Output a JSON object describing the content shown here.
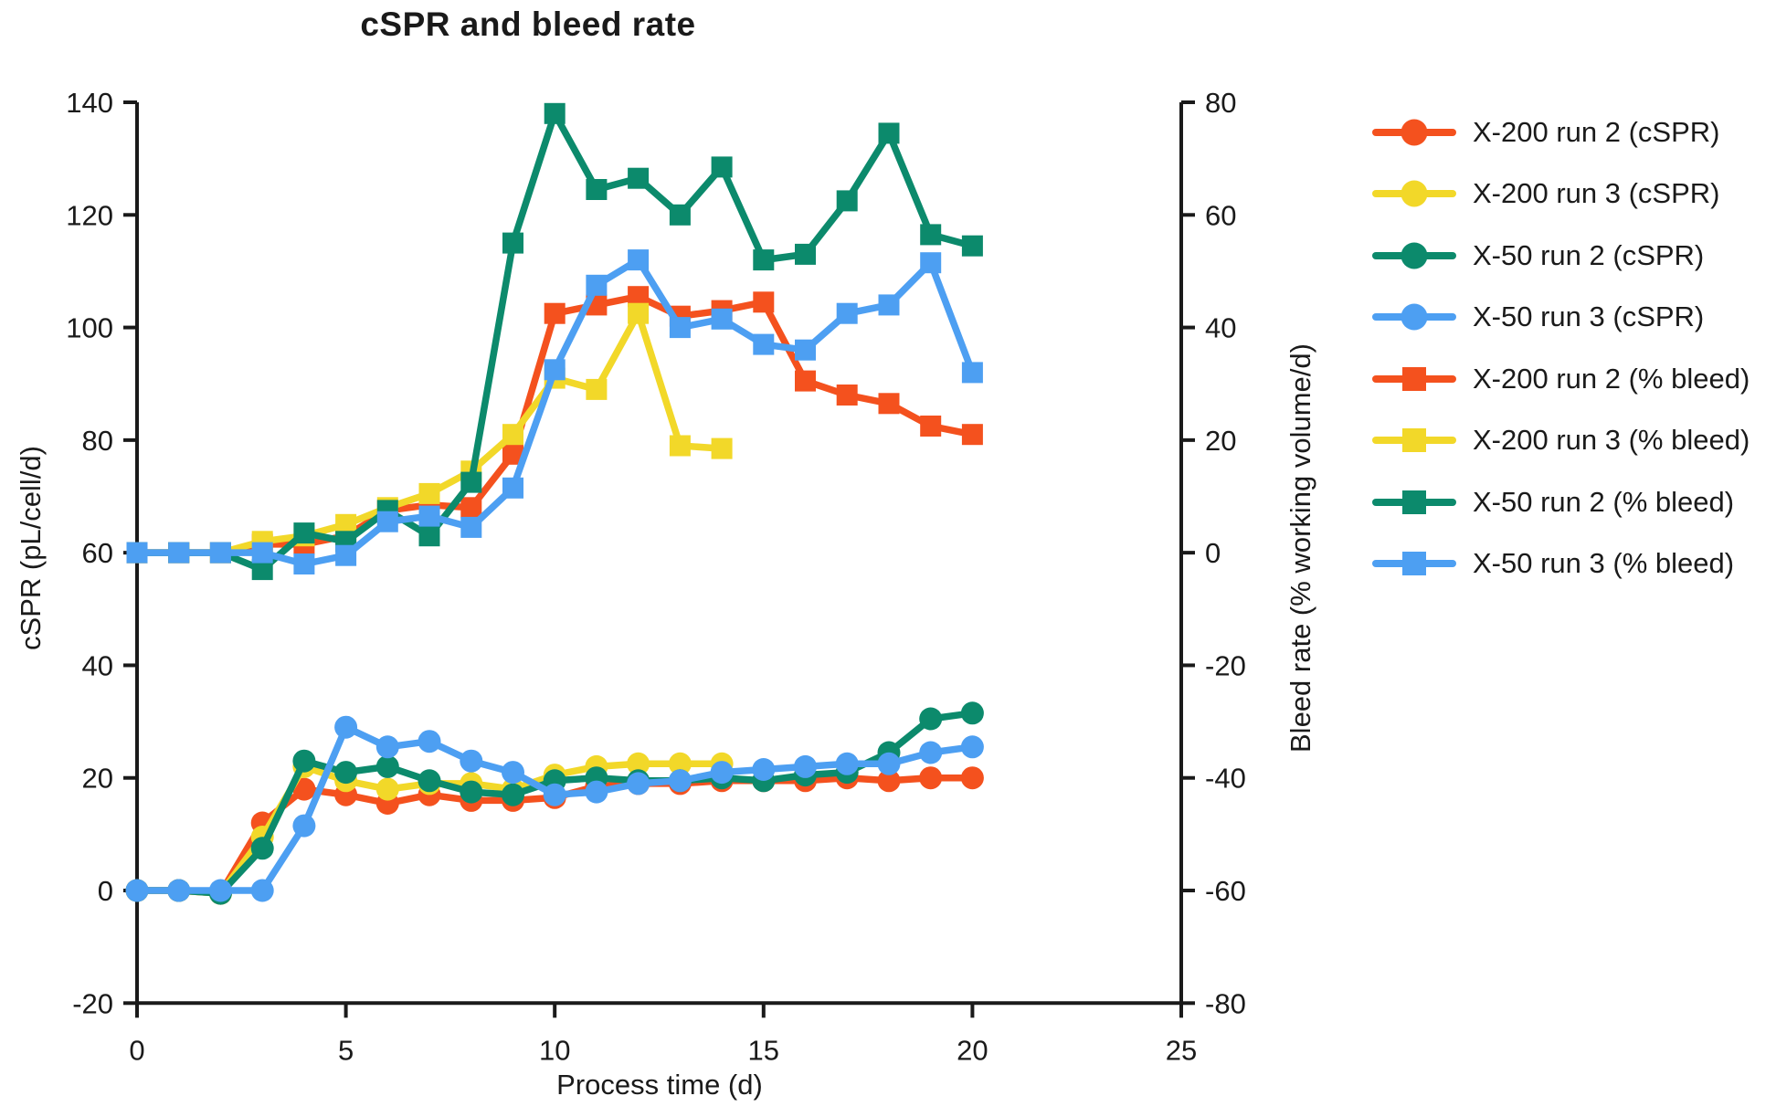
{
  "chart": {
    "title": "cSPR and bleed rate",
    "x_label": "Process time (d)",
    "y_left_label": "cSPR (pL/cell/d)",
    "y_right_label": "Bleed rate (% working volume/d)"
  },
  "colors": {
    "axis": "#1a1a1a",
    "x200_run2": "#F4511E",
    "x200_run3": "#F2D829",
    "x50_run2": "#0C8A6C",
    "x50_run3": "#4D9FF2"
  },
  "chart_data": {
    "type": "line",
    "title": "cSPR and bleed rate",
    "xlabel": "Process time (d)",
    "ylabel_left": "cSPR (pL/cell/d)",
    "ylabel_right": "Bleed rate (% working volume/d)",
    "grid": false,
    "legend_position": "right",
    "xlim": [
      0,
      25
    ],
    "x_ticks": [
      0,
      5,
      10,
      15,
      20,
      25
    ],
    "ylim_left": [
      -20,
      140
    ],
    "y_ticks_left": [
      140,
      120,
      100,
      80,
      60,
      40,
      20,
      0,
      -20
    ],
    "ylim_right": [
      -80,
      80
    ],
    "y_ticks_right": [
      80,
      60,
      40,
      20,
      0,
      -20,
      -40,
      -60,
      -80
    ],
    "series": [
      {
        "name": "X-200 run 2 (cSPR)",
        "axis": "left",
        "marker": "circle",
        "color": "#F4511E",
        "x": [
          0,
          1,
          2,
          3,
          4,
          5,
          6,
          7,
          8,
          9,
          10,
          11,
          12,
          13,
          14,
          15,
          16,
          17,
          18,
          19,
          20
        ],
        "values": [
          0,
          0,
          -0.5,
          12,
          18,
          17,
          15.5,
          17,
          16,
          16,
          16.5,
          18.5,
          19,
          19,
          19.5,
          19.5,
          19.5,
          20,
          19.5,
          20,
          20
        ]
      },
      {
        "name": "X-200 run 3 (cSPR)",
        "axis": "left",
        "marker": "circle",
        "color": "#F2D829",
        "x": [
          0,
          1,
          2,
          3,
          4,
          5,
          6,
          7,
          8,
          9,
          10,
          11,
          12,
          13,
          14
        ],
        "values": [
          0,
          0,
          -0.5,
          9.5,
          22,
          19.5,
          18,
          19,
          19,
          18,
          20.5,
          22,
          22.5,
          22.5,
          22.5
        ]
      },
      {
        "name": "X-50 run 2 (cSPR)",
        "axis": "left",
        "marker": "circle",
        "color": "#0C8A6C",
        "x": [
          0,
          1,
          2,
          3,
          4,
          5,
          6,
          7,
          8,
          9,
          10,
          11,
          12,
          13,
          14,
          15,
          16,
          17,
          18,
          19,
          20
        ],
        "values": [
          0,
          0,
          -0.5,
          7.5,
          23,
          21,
          22,
          19.5,
          17.5,
          17,
          19.5,
          20,
          19.5,
          19.5,
          20,
          19.5,
          20.5,
          21,
          24.5,
          30.5,
          31.5
        ]
      },
      {
        "name": "X-50 run 3 (cSPR)",
        "axis": "left",
        "marker": "circle",
        "color": "#4D9FF2",
        "x": [
          0,
          1,
          2,
          3,
          4,
          5,
          6,
          7,
          8,
          9,
          10,
          11,
          12,
          13,
          14,
          15,
          16,
          17,
          18,
          19,
          20
        ],
        "values": [
          0,
          0,
          0,
          0,
          11.5,
          29,
          25.5,
          26.5,
          23,
          21,
          17,
          17.5,
          19,
          19.5,
          21,
          21.5,
          22,
          22.5,
          22.5,
          24.5,
          25.5
        ]
      },
      {
        "name": "X-200 run 2 (% bleed)",
        "axis": "right",
        "marker": "square",
        "color": "#F4511E",
        "x": [
          0,
          1,
          2,
          3,
          4,
          5,
          6,
          7,
          8,
          9,
          10,
          11,
          12,
          13,
          14,
          15,
          16,
          17,
          18,
          19,
          20
        ],
        "values": [
          0,
          0,
          0,
          1.5,
          1.5,
          3,
          7.5,
          8.5,
          8,
          17.5,
          42.5,
          44,
          45.5,
          42,
          43,
          44.5,
          30.5,
          28,
          26.5,
          22.5,
          21
        ]
      },
      {
        "name": "X-200 run 3 (% bleed)",
        "axis": "right",
        "marker": "square",
        "color": "#F2D829",
        "x": [
          0,
          1,
          2,
          3,
          4,
          5,
          6,
          7,
          8,
          9,
          10,
          11,
          12,
          13,
          14
        ],
        "values": [
          0,
          0,
          0,
          2,
          3,
          5,
          8,
          10.5,
          14.5,
          21,
          31,
          29,
          42.5,
          19,
          18.5
        ]
      },
      {
        "name": "X-50 run 2 (% bleed)",
        "axis": "right",
        "marker": "square",
        "color": "#0C8A6C",
        "x": [
          0,
          1,
          2,
          3,
          4,
          5,
          6,
          7,
          8,
          9,
          10,
          11,
          12,
          13,
          14,
          15,
          16,
          17,
          18,
          19,
          20
        ],
        "values": [
          0,
          0,
          0,
          -3,
          3.5,
          2,
          7.5,
          3,
          12.5,
          55,
          78,
          64.5,
          66.5,
          60,
          68.5,
          52,
          53,
          62.5,
          74.5,
          56.5,
          54.5
        ]
      },
      {
        "name": "X-50 run 3 (% bleed)",
        "axis": "right",
        "marker": "square",
        "color": "#4D9FF2",
        "x": [
          0,
          1,
          2,
          3,
          4,
          5,
          6,
          7,
          8,
          9,
          10,
          11,
          12,
          13,
          14,
          15,
          16,
          17,
          18,
          19,
          20
        ],
        "values": [
          0,
          0,
          0,
          0,
          -2,
          -0.5,
          5.5,
          6.5,
          4.5,
          11.5,
          32.5,
          47.5,
          52,
          40,
          41.5,
          37,
          36,
          42.5,
          44,
          51.5,
          32
        ]
      }
    ]
  }
}
